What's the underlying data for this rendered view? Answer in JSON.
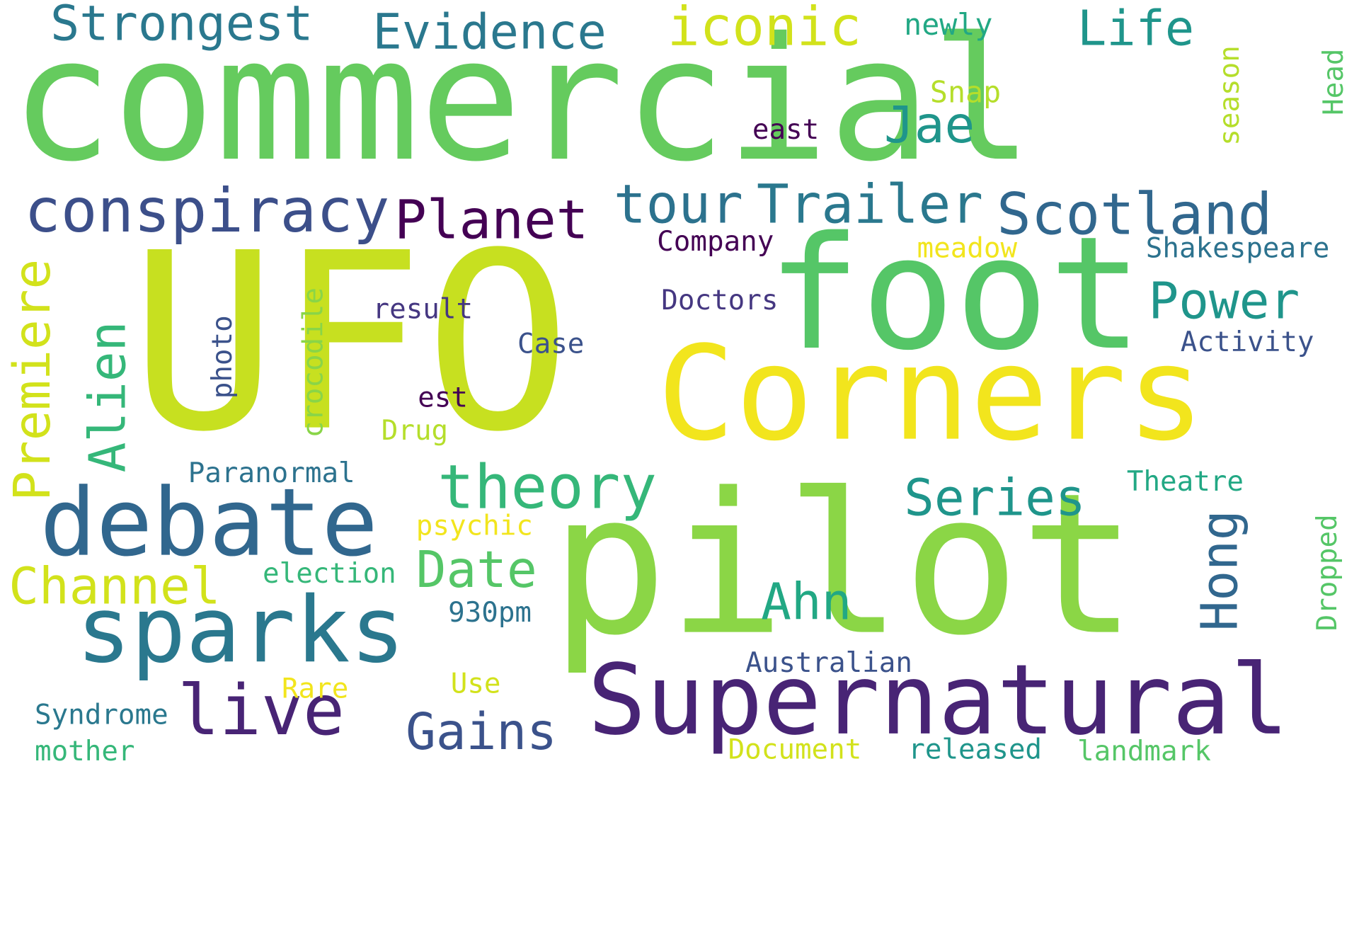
{
  "palette": {
    "c1": "#65cb5e",
    "c2": "#c7e020",
    "c3": "#55c667",
    "c4": "#f2e51d",
    "c5": "#8bd646",
    "c6": "#3c4f8a",
    "c7": "#2c728e",
    "c8": "#453781",
    "c9": "#31678e",
    "c10": "#440154",
    "c11": "#482475",
    "c12": "#3b528b",
    "c13": "#2a788e",
    "c14": "#1f958b",
    "c15": "#22a884",
    "c16": "#35b779",
    "c17": "#a0da39",
    "c18": "#b5de2b",
    "c19": "#d2e21b",
    "c20": "#89d548"
  },
  "words": {
    "commercial": "commercial",
    "ufo": "UFO",
    "foot": "foot",
    "corners": "Corners",
    "pilot": "pilot",
    "supernatural": "Supernatural",
    "debate": "debate",
    "sparks": "sparks",
    "theory": "theory",
    "conspiracy": "conspiracy",
    "planet": "Planet",
    "tour": "tour",
    "trailer": "Trailer",
    "scotland": "Scotland",
    "strongest": "Strongest",
    "evidence": "Evidence",
    "iconic": "iconic",
    "life": "Life",
    "newly": "newly",
    "jae": "Jae",
    "east": "east",
    "snap": "Snap",
    "season": "season",
    "head": "Head",
    "company": "Company",
    "meadow": "meadow",
    "shakespeare": "Shakespeare",
    "power": "Power",
    "doctors": "Doctors",
    "result": "result",
    "activity": "Activity",
    "case": "Case",
    "alien": "Alien",
    "premiere": "Premiere",
    "photo": "photo",
    "crocodile": "crocodile",
    "est": "est",
    "drug": "Drug",
    "paranormal": "Paranormal",
    "series": "Series",
    "theatre": "Theatre",
    "hong": "Hong",
    "dropped": "Dropped",
    "psychic": "psychic",
    "channel": "Channel",
    "election": "election",
    "date": "Date",
    "ahn": "Ahn",
    "930pm": "930pm",
    "live": "live",
    "australian": "Australian",
    "rare": "Rare",
    "use": "Use",
    "syndrome": "Syndrome",
    "gains": "Gains",
    "mother": "mother",
    "document": "Document",
    "released": "released",
    "landmark": "landmark"
  }
}
